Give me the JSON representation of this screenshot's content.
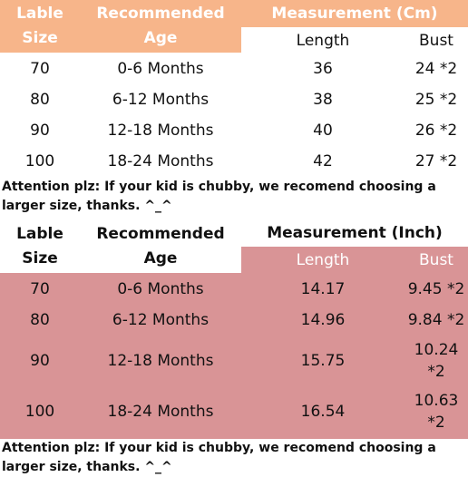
{
  "cm_table": {
    "header": {
      "size_label_line1": "Lable",
      "size_label_line2": "Size",
      "age_label_line1": "Recommended",
      "age_label_line2": "Age",
      "measurement_title": "Measurement (Cm)",
      "length_label": "Length",
      "bust_label": "Bust"
    },
    "rows": [
      {
        "size": "70",
        "age": "0-6 Months",
        "length": "36",
        "bust": "24 *2"
      },
      {
        "size": "80",
        "age": "6-12 Months",
        "length": "38",
        "bust": "25 *2"
      },
      {
        "size": "90",
        "age": "12-18 Months",
        "length": "40",
        "bust": "26 *2"
      },
      {
        "size": "100",
        "age": "18-24 Months",
        "length": "42",
        "bust": "27 *2"
      }
    ],
    "note": "Attention plz: If your kid is chubby, we recomend choosing a larger size, thanks. ^_^"
  },
  "inch_table": {
    "header": {
      "size_label_line1": "Lable",
      "size_label_line2": "Size",
      "age_label_line1": "Recommended",
      "age_label_line2": "Age",
      "measurement_title": "Measurement (Inch)",
      "length_label": "Length",
      "bust_label": "Bust"
    },
    "rows": [
      {
        "size": "70",
        "age": "0-6 Months",
        "length": "14.17",
        "bust_line1": "9.45 *2",
        "bust_line2": ""
      },
      {
        "size": "80",
        "age": "6-12 Months",
        "length": "14.96",
        "bust_line1": "9.84 *2",
        "bust_line2": ""
      },
      {
        "size": "90",
        "age": "12-18 Months",
        "length": "15.75",
        "bust_line1": "10.24",
        "bust_line2": "*2"
      },
      {
        "size": "100",
        "age": "18-24 Months",
        "length": "16.54",
        "bust_line1": "10.63",
        "bust_line2": "*2"
      }
    ],
    "note": "Attention plz: If your kid is chubby, we recomend choosing a larger size, thanks. ^_^"
  },
  "colors": {
    "orange_header": "#f7b58a",
    "pink_background": "#d99496"
  }
}
